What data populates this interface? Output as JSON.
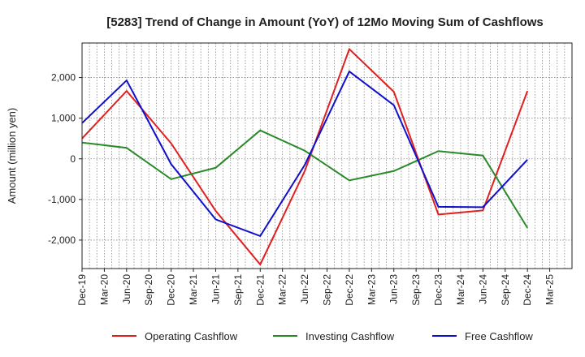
{
  "chart_data": {
    "type": "line",
    "title": "[5283]  Trend of Change in Amount (YoY) of 12Mo Moving Sum of Cashflows",
    "xlabel": "",
    "ylabel": "Amount (million yen)",
    "ylim": [
      -2700,
      2850
    ],
    "yticks": [
      -2000,
      -1000,
      0,
      1000,
      2000
    ],
    "ytick_labels": [
      "-2,000",
      "-1,000",
      "0",
      "1,000",
      "2,000"
    ],
    "categories": [
      "Dec-19",
      "Mar-20",
      "Jun-20",
      "Sep-20",
      "Dec-20",
      "Mar-21",
      "Jun-21",
      "Sep-21",
      "Dec-21",
      "Mar-22",
      "Jun-22",
      "Sep-22",
      "Dec-22",
      "Mar-23",
      "Jun-23",
      "Sep-23",
      "Dec-23",
      "Mar-24",
      "Jun-24",
      "Sep-24",
      "Dec-24",
      "Mar-25"
    ],
    "grid": true,
    "legend_position": "bottom",
    "series": [
      {
        "name": "Operating Cashflow",
        "color": "#e02020",
        "points": [
          [
            "Dec-19",
            500
          ],
          [
            "Jun-20",
            1670
          ],
          [
            "Dec-20",
            380
          ],
          [
            "Jun-21",
            -1280
          ],
          [
            "Dec-21",
            -2600
          ],
          [
            "Jun-22",
            -300
          ],
          [
            "Dec-22",
            2700
          ],
          [
            "Jun-23",
            1650
          ],
          [
            "Dec-23",
            -1370
          ],
          [
            "Jun-24",
            -1270
          ],
          [
            "Dec-24",
            1670
          ]
        ]
      },
      {
        "name": "Investing Cashflow",
        "color": "#2a8a2a",
        "points": [
          [
            "Dec-19",
            400
          ],
          [
            "Jun-20",
            270
          ],
          [
            "Dec-20",
            -500
          ],
          [
            "Jun-21",
            -220
          ],
          [
            "Dec-21",
            700
          ],
          [
            "Jun-22",
            200
          ],
          [
            "Dec-22",
            -530
          ],
          [
            "Jun-23",
            -300
          ],
          [
            "Dec-23",
            190
          ],
          [
            "Jun-24",
            80
          ],
          [
            "Dec-24",
            -1700
          ]
        ]
      },
      {
        "name": "Free Cashflow",
        "color": "#1010cc",
        "points": [
          [
            "Dec-19",
            880
          ],
          [
            "Jun-20",
            1930
          ],
          [
            "Dec-20",
            -130
          ],
          [
            "Jun-21",
            -1490
          ],
          [
            "Dec-21",
            -1900
          ],
          [
            "Jun-22",
            -150
          ],
          [
            "Dec-22",
            2150
          ],
          [
            "Jun-23",
            1320
          ],
          [
            "Dec-23",
            -1180
          ],
          [
            "Jun-24",
            -1190
          ],
          [
            "Dec-24",
            -20
          ]
        ]
      }
    ]
  }
}
